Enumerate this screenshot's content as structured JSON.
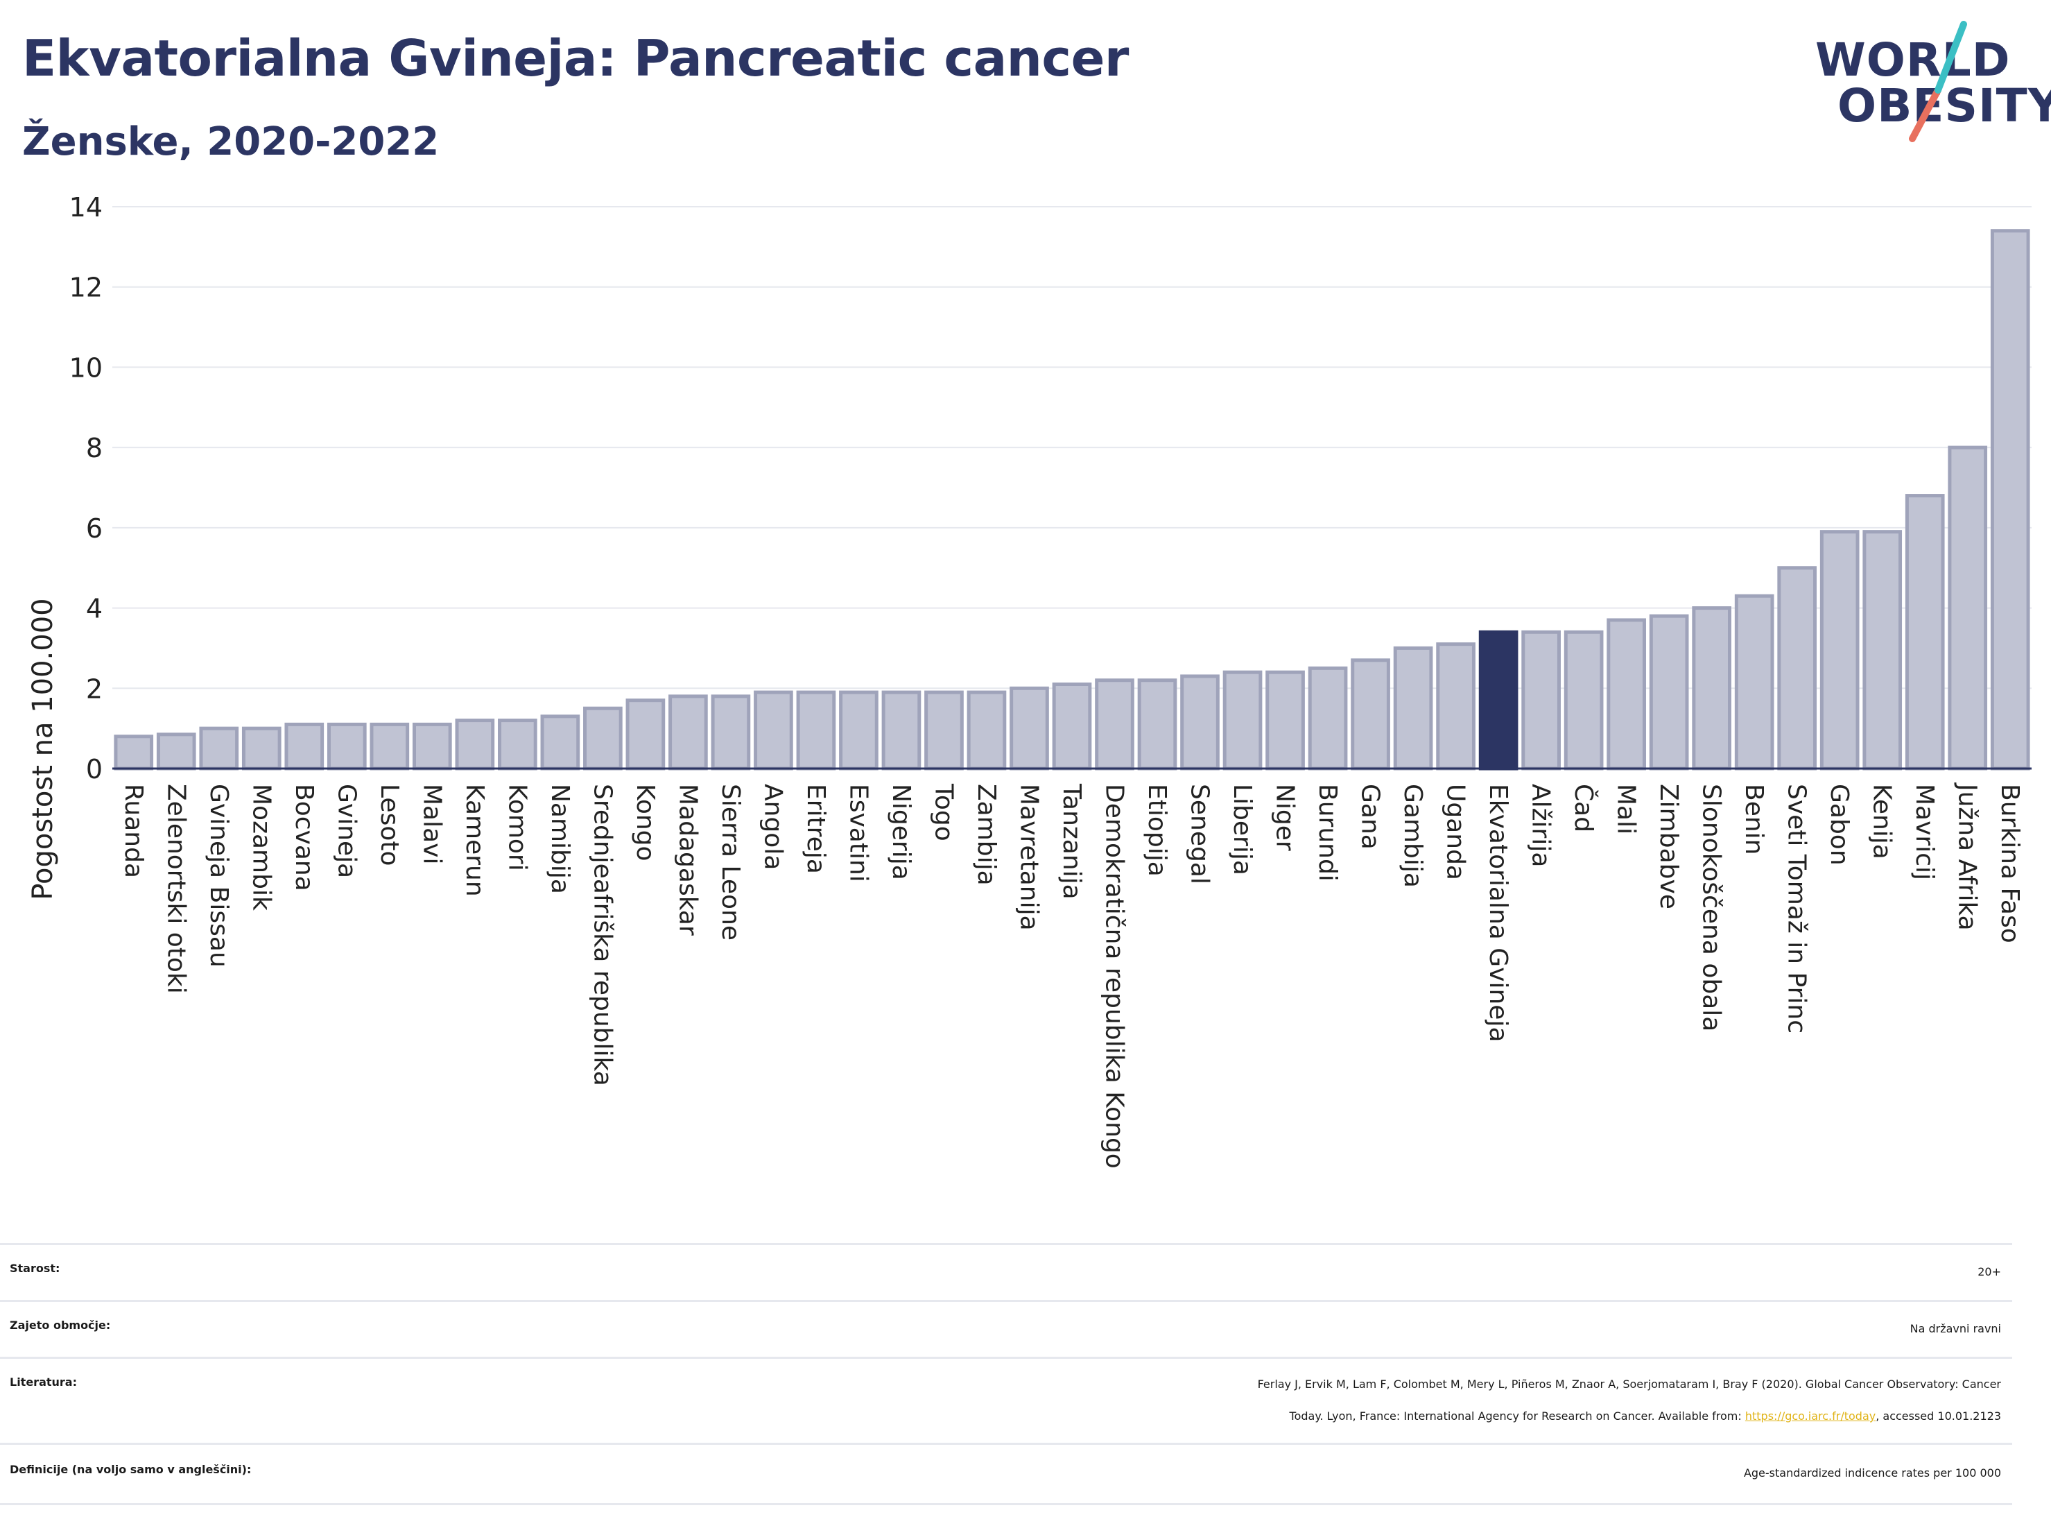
{
  "header": {
    "title": "Ekvatorialna Gvineja: Pancreatic cancer",
    "subtitle": "Ženske, 2020-2022"
  },
  "logo": {
    "line1": "WORLD",
    "line2": "OBESITY",
    "colors": {
      "text": "#2c3563",
      "slash_teal": "#3bbfc4",
      "slash_coral": "#e8705e"
    }
  },
  "chart_data": {
    "type": "bar",
    "title": "Ekvatorialna Gvineja: Pancreatic cancer",
    "subtitle": "Ženske, 2020-2022",
    "xlabel": "",
    "ylabel": "Pogostost na 100.000",
    "ylim": [
      0,
      14
    ],
    "yticks": [
      0,
      2,
      4,
      6,
      8,
      10,
      12,
      14
    ],
    "grid": true,
    "highlight": "Ekvatorialna Gvineja",
    "colors": {
      "bar": "#c0c3d3",
      "bar_border": "#9fa3ba",
      "highlight": "#2c3563"
    },
    "categories": [
      "Ruanda",
      "Zelenortski otoki",
      "Gvineja Bissau",
      "Mozambik",
      "Bocvana",
      "Gvineja",
      "Lesoto",
      "Malavi",
      "Kamerun",
      "Komori",
      "Namibija",
      "Srednjeafriška republika",
      "Kongo",
      "Madagaskar",
      "Sierra Leone",
      "Angola",
      "Eritreja",
      "Esvatini",
      "Nigerija",
      "Togo",
      "Zambija",
      "Mavretanija",
      "Tanzanija",
      "Demokratična republika Kongo",
      "Etiopija",
      "Senegal",
      "Liberija",
      "Niger",
      "Burundi",
      "Gana",
      "Gambija",
      "Uganda",
      "Ekvatorialna Gvineja",
      "Alžirija",
      "Čad",
      "Mali",
      "Zimbabve",
      "Slonokoščena obala",
      "Benin",
      "Sveti Tomaž in Princ",
      "Gabon",
      "Kenija",
      "Mavricij",
      "Južna Afrika",
      "Burkina Faso"
    ],
    "values": [
      0.8,
      0.85,
      1.0,
      1.0,
      1.1,
      1.1,
      1.1,
      1.1,
      1.2,
      1.2,
      1.3,
      1.5,
      1.7,
      1.8,
      1.8,
      1.9,
      1.9,
      1.9,
      1.9,
      1.9,
      1.9,
      2.0,
      2.1,
      2.2,
      2.2,
      2.3,
      2.4,
      2.4,
      2.5,
      2.7,
      3.0,
      3.1,
      3.4,
      3.4,
      3.4,
      3.7,
      3.8,
      4.0,
      4.3,
      5.0,
      5.9,
      5.9,
      6.8,
      8.0,
      13.4
    ]
  },
  "info": {
    "age_label": "Starost:",
    "age_value": "20+",
    "coverage_label": "Zajeto območje:",
    "coverage_value": "Na državni ravni",
    "ref_label": "Literatura:",
    "ref_line1": "Ferlay J, Ervik M, Lam F, Colombet M, Mery L, Piñeros M, Znaor A, Soerjomataram I, Bray F (2020). Global Cancer Observatory: Cancer",
    "ref_line2_pre": "Today. Lyon, France: International Agency for Research on Cancer. Available from: ",
    "ref_link": "https://gco.iarc.fr/today",
    "ref_line2_post": ", accessed 10.01.2123",
    "def_label": "Definicije (na voljo samo v angleščini):",
    "def_value": "Age-standardized indicence rates per 100 000"
  }
}
